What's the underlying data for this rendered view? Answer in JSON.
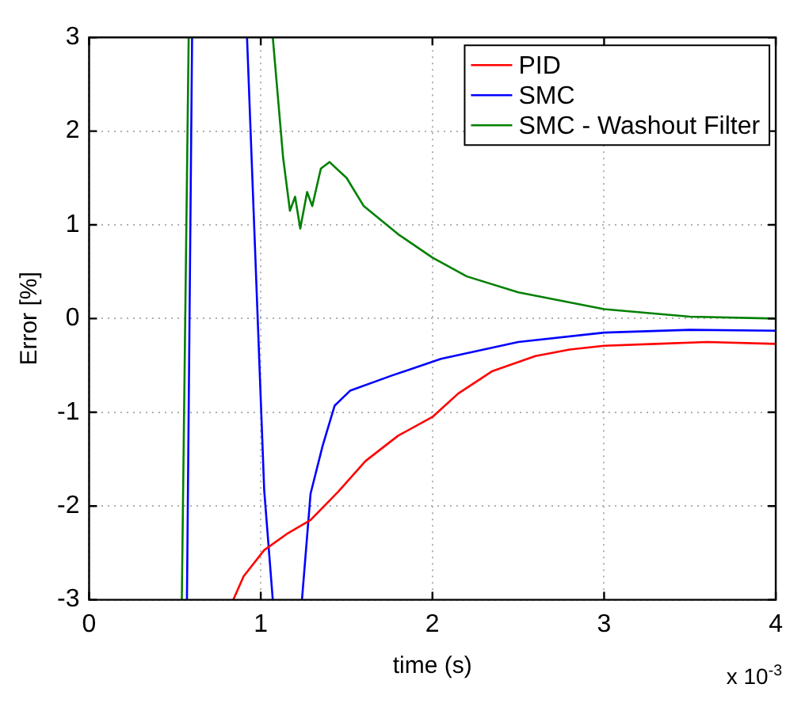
{
  "chart_data": {
    "type": "line",
    "xlabel": "time (s)",
    "ylabel": "Error [%]",
    "xlim": [
      0,
      4
    ],
    "xticks": [
      0,
      1,
      2,
      3,
      4
    ],
    "ylim": [
      -3,
      3
    ],
    "yticks": [
      -3,
      -2,
      -1,
      0,
      1,
      2,
      3
    ],
    "annotations": [
      "x 10$^{-3}$"
    ],
    "grid": true,
    "legend": "top right",
    "marker": "none",
    "line_style": "solid",
    "series": [
      {
        "name": "PID",
        "color": "#ff0000",
        "x": [
          0.84,
          0.9,
          1.02,
          1.15,
          1.29,
          1.45,
          1.61,
          1.8,
          2.0,
          2.15,
          2.35,
          2.6,
          2.8,
          3.0,
          3.3,
          3.6,
          4.0
        ],
        "values": [
          -3,
          -2.75,
          -2.47,
          -2.3,
          -2.15,
          -1.85,
          -1.52,
          -1.25,
          -1.05,
          -0.8,
          -0.56,
          -0.4,
          -0.33,
          -0.29,
          -0.27,
          -0.25,
          -0.27
        ]
      },
      {
        "name": "SMC",
        "color": "#0000ff",
        "x": [
          0.57,
          0.6,
          0.75,
          0.92,
          1.02,
          1.07,
          1.16,
          1.24,
          1.29,
          1.36,
          1.43,
          1.52,
          1.76,
          2.05,
          2.5,
          3.0,
          3.5,
          4.0
        ],
        "values": [
          -3,
          3,
          null,
          3,
          -1.83,
          -3,
          null,
          -3,
          -1.87,
          -1.36,
          -0.93,
          -0.77,
          -0.61,
          -0.43,
          -0.25,
          -0.15,
          -0.12,
          -0.13
        ]
      },
      {
        "name": "SMC - Washout Filter",
        "color": "#008000",
        "x": [
          0.54,
          0.58,
          0.8,
          1.07,
          1.13,
          1.17,
          1.2,
          1.23,
          1.27,
          1.3,
          1.35,
          1.4,
          1.5,
          1.6,
          1.8,
          2.0,
          2.2,
          2.5,
          3.0,
          3.5,
          4.0
        ],
        "values": [
          -3,
          3,
          null,
          3,
          1.72,
          1.15,
          1.3,
          0.96,
          1.35,
          1.2,
          1.6,
          1.67,
          1.5,
          1.2,
          0.9,
          0.65,
          0.45,
          0.28,
          0.1,
          0.02,
          0.0
        ]
      }
    ]
  }
}
